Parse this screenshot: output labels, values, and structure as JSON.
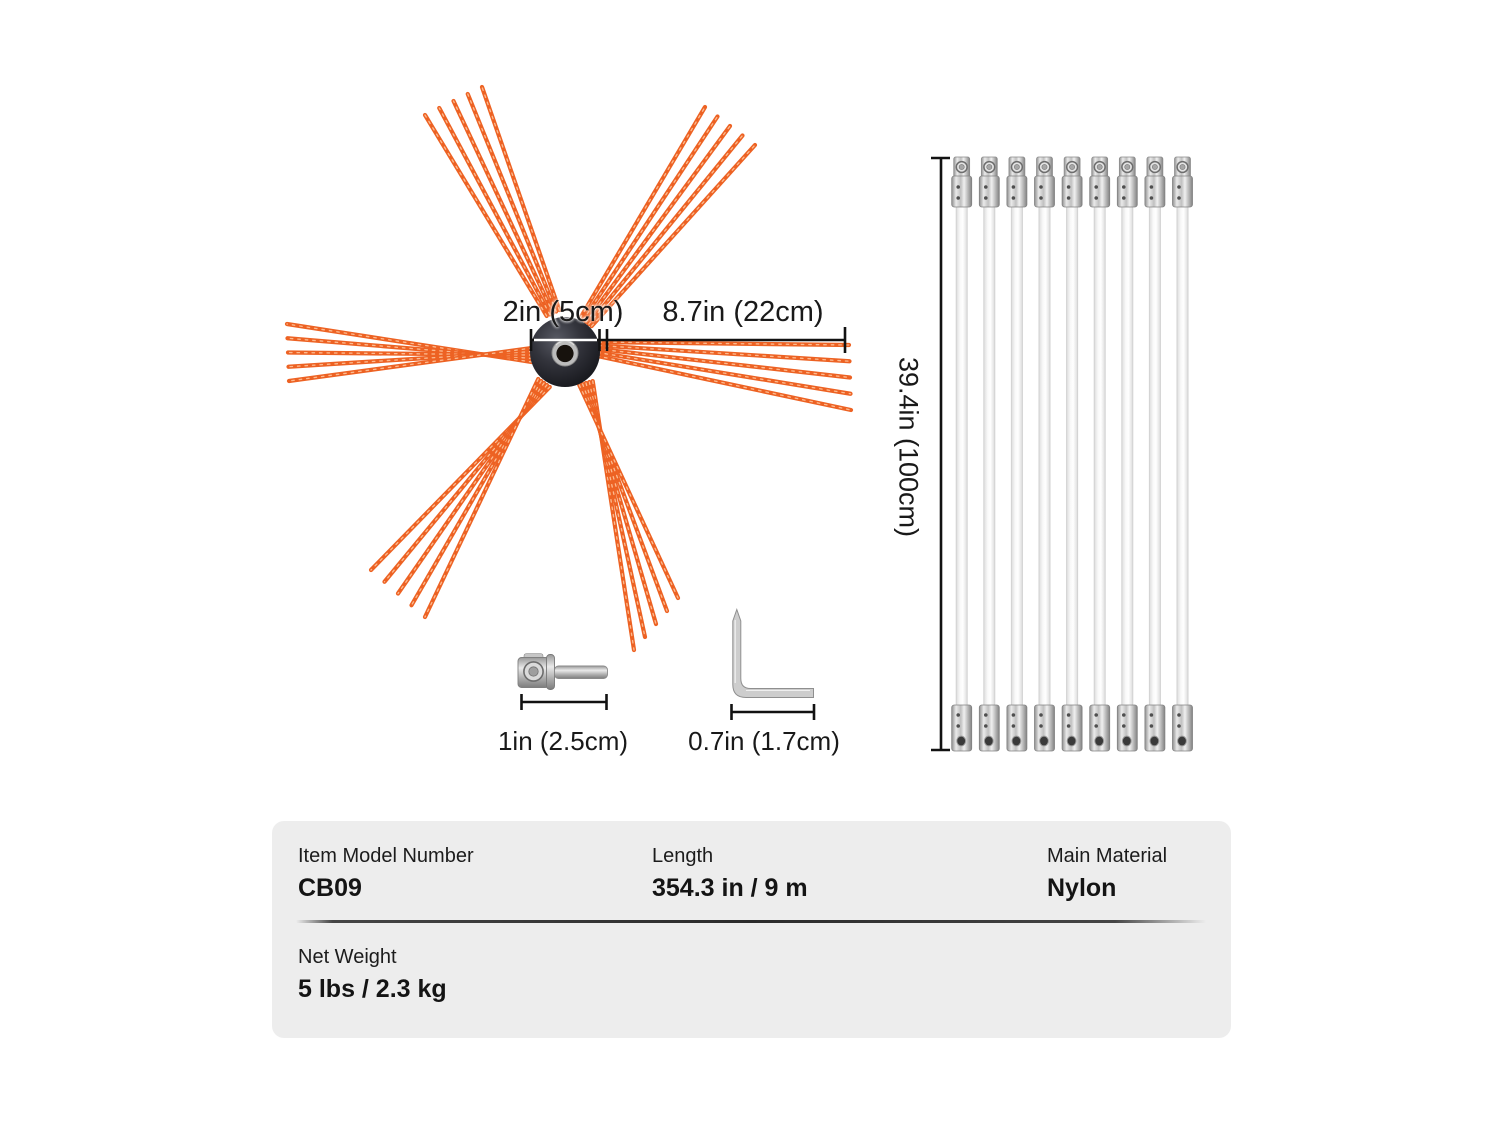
{
  "page": {
    "background": "#ffffff"
  },
  "diagram": {
    "brush": {
      "hub_dimension_label": "2in (5cm)",
      "bristle_dimension_label": "8.7in (22cm)",
      "bristle_color": "#ed6223",
      "bristle_highlight": "#ffcaa2",
      "hub_color": "#2a2b33",
      "bundle_count": 6,
      "strands_per_bundle": 5
    },
    "adapter": {
      "dimension_label": "1in (2.5cm)"
    },
    "hex_key": {
      "dimension_label": "0.7in (1.7cm)"
    },
    "rods": {
      "dimension_label": "39.4in (100cm)",
      "count": 9
    }
  },
  "spec_panel": {
    "background": "#ededed",
    "rows": [
      [
        {
          "label": "Item Model Number",
          "value": "CB09"
        },
        {
          "label": "Length",
          "value": "354.3 in / 9 m"
        },
        {
          "label": "Main Material",
          "value": "Nylon"
        }
      ],
      [
        {
          "label": "Net Weight",
          "value": "5 lbs / 2.3 kg"
        }
      ]
    ]
  }
}
